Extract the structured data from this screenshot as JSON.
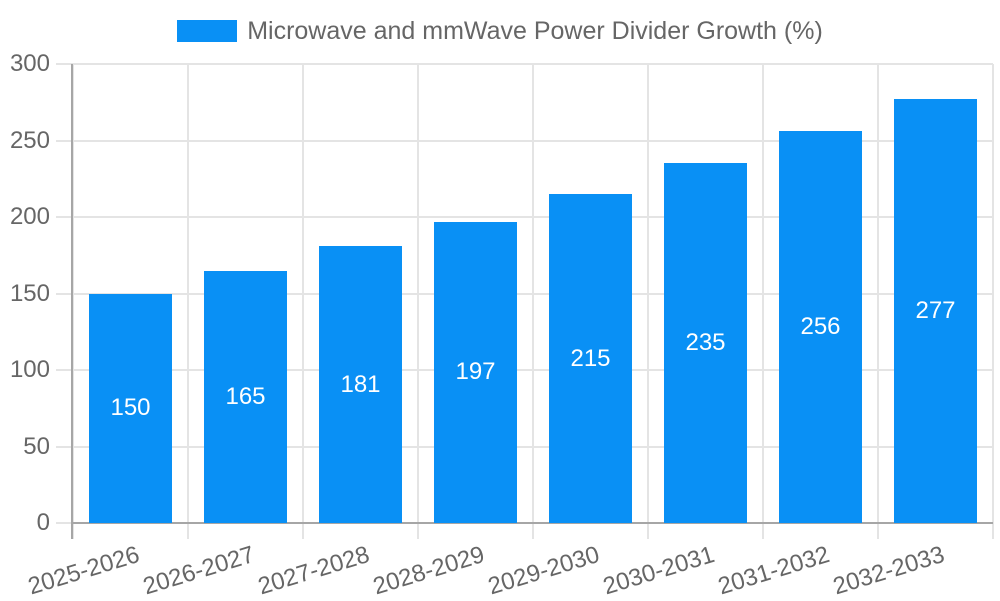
{
  "legend": {
    "label": "Microwave and mmWave Power Divider Growth (%)"
  },
  "colors": {
    "bar": "#0990F5",
    "grid": "#E4E4E4",
    "axis": "#A6A6A6",
    "tick_text": "#666666",
    "legend_text": "#666666",
    "value_text": "#FFFFFF",
    "background": "#FFFFFF"
  },
  "chart_data": {
    "type": "bar",
    "title": "Microwave and mmWave Power Divider Growth (%)",
    "categories": [
      "2025-2026",
      "2026-2027",
      "2027-2028",
      "2028-2029",
      "2029-2030",
      "2030-2031",
      "2031-2032",
      "2032-2033"
    ],
    "values": [
      150,
      165,
      181,
      197,
      215,
      235,
      256,
      277
    ],
    "xlabel": "",
    "ylabel": "",
    "ylim": [
      0,
      300
    ],
    "yticks": [
      0,
      50,
      100,
      150,
      200,
      250,
      300
    ],
    "grid": "on",
    "legend_position": "top-center",
    "bar_label_position": "inside-center",
    "x_label_rotation_deg": -17
  }
}
